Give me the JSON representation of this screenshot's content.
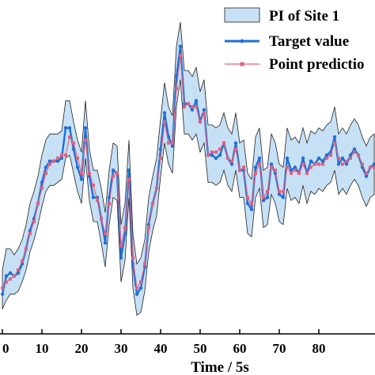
{
  "chart_data": {
    "type": "line",
    "xlabel": "Time / 5s",
    "ylabel": "",
    "xlim": [
      0,
      94
    ],
    "ylim": [
      0,
      100
    ],
    "xticks": [
      0,
      10,
      20,
      30,
      40,
      50,
      60,
      70,
      80
    ],
    "tick_labels": [
      "0",
      "10",
      "20",
      "30",
      "40",
      "50",
      "60",
      "70",
      "80"
    ],
    "grid": false,
    "legend_position": "top-right",
    "legend": [
      "PI of Site 1",
      "Target value",
      "Point predictio"
    ],
    "colors": {
      "interval_fill": "#c6e0f5",
      "interval_stroke": "#222222",
      "target": "#1f6fd6",
      "prediction": "#e0607e"
    },
    "x": [
      0,
      1,
      2,
      3,
      4,
      5,
      6,
      7,
      8,
      9,
      10,
      11,
      12,
      13,
      14,
      15,
      16,
      17,
      18,
      19,
      20,
      21,
      22,
      23,
      24,
      25,
      26,
      27,
      28,
      29,
      30,
      31,
      32,
      33,
      34,
      35,
      36,
      37,
      38,
      39,
      40,
      41,
      42,
      43,
      44,
      45,
      46,
      47,
      48,
      49,
      50,
      51,
      52,
      53,
      54,
      55,
      56,
      57,
      58,
      59,
      60,
      61,
      62,
      63,
      64,
      65,
      66,
      67,
      68,
      69,
      70,
      71,
      72,
      73,
      74,
      75,
      76,
      77,
      78,
      79,
      80,
      81,
      82,
      83,
      84,
      85,
      86,
      87,
      88,
      89,
      90,
      91,
      92,
      93,
      94
    ],
    "series": [
      {
        "name": "Target value",
        "values": [
          10,
          16,
          17,
          16,
          17,
          20,
          25,
          31,
          35,
          40,
          47,
          52,
          54,
          54,
          54,
          55,
          65,
          65,
          58,
          52,
          48,
          65,
          49,
          42,
          42,
          35,
          27,
          42,
          51,
          50,
          22,
          30,
          51,
          20,
          10,
          12,
          19,
          33,
          40,
          45,
          58,
          70,
          62,
          59,
          82,
          92,
          73,
          73,
          71,
          74,
          67,
          71,
          56,
          56,
          55,
          56,
          60,
          55,
          53,
          60,
          51,
          51,
          40,
          38,
          52,
          55,
          41,
          42,
          53,
          50,
          43,
          42,
          55,
          51,
          52,
          50,
          55,
          50,
          54,
          53,
          55,
          54,
          56,
          57,
          62,
          53,
          55,
          53,
          56,
          58,
          56,
          52,
          49,
          52,
          53
        ]
      },
      {
        "name": "Point predictio",
        "values": [
          12,
          14,
          15,
          16,
          18,
          21,
          25,
          30,
          34,
          40,
          45,
          50,
          53,
          54,
          55,
          56,
          56,
          62,
          60,
          55,
          50,
          61,
          50,
          46,
          41,
          35,
          30,
          40,
          49,
          50,
          26,
          32,
          48,
          22,
          12,
          14,
          20,
          32,
          40,
          45,
          55,
          67,
          60,
          60,
          78,
          89,
          72,
          73,
          72,
          72,
          67,
          70,
          56,
          57,
          57,
          58,
          60,
          55,
          54,
          58,
          51,
          52,
          42,
          40,
          50,
          53,
          42,
          44,
          52,
          51,
          44,
          44,
          52,
          50,
          51,
          50,
          53,
          50,
          52,
          53,
          53,
          53,
          55,
          56,
          60,
          55,
          53,
          54,
          55,
          57,
          56,
          53,
          50,
          52,
          52
        ]
      }
    ],
    "interval": {
      "name": "PI of Site 1",
      "lower": [
        5,
        8,
        10,
        10,
        11,
        14,
        18,
        24,
        28,
        33,
        39,
        44,
        46,
        46,
        47,
        48,
        55,
        56,
        50,
        44,
        40,
        55,
        41,
        34,
        34,
        27,
        19,
        33,
        42,
        41,
        14,
        21,
        42,
        12,
        3,
        4,
        11,
        24,
        31,
        36,
        49,
        60,
        53,
        50,
        72,
        81,
        63,
        63,
        61,
        63,
        57,
        60,
        47,
        47,
        46,
        47,
        51,
        46,
        44,
        51,
        42,
        42,
        30,
        29,
        42,
        45,
        32,
        33,
        43,
        40,
        34,
        33,
        45,
        41,
        42,
        40,
        46,
        40,
        44,
        43,
        45,
        44,
        46,
        47,
        51,
        43,
        45,
        43,
        46,
        48,
        46,
        42,
        39,
        42,
        43
      ],
      "upper": [
        18,
        25,
        25,
        23,
        25,
        28,
        33,
        40,
        44,
        49,
        56,
        61,
        63,
        63,
        63,
        64,
        74,
        74,
        67,
        61,
        57,
        74,
        58,
        51,
        51,
        45,
        37,
        51,
        60,
        59,
        33,
        40,
        61,
        30,
        20,
        22,
        28,
        42,
        49,
        55,
        68,
        80,
        72,
        69,
        92,
        100,
        84,
        84,
        82,
        85,
        77,
        81,
        66,
        66,
        65,
        66,
        70,
        65,
        63,
        70,
        60,
        61,
        50,
        48,
        62,
        65,
        51,
        52,
        63,
        60,
        53,
        52,
        65,
        61,
        62,
        60,
        65,
        60,
        64,
        63,
        65,
        64,
        66,
        67,
        72,
        63,
        65,
        63,
        66,
        68,
        66,
        62,
        59,
        62,
        63
      ]
    }
  }
}
